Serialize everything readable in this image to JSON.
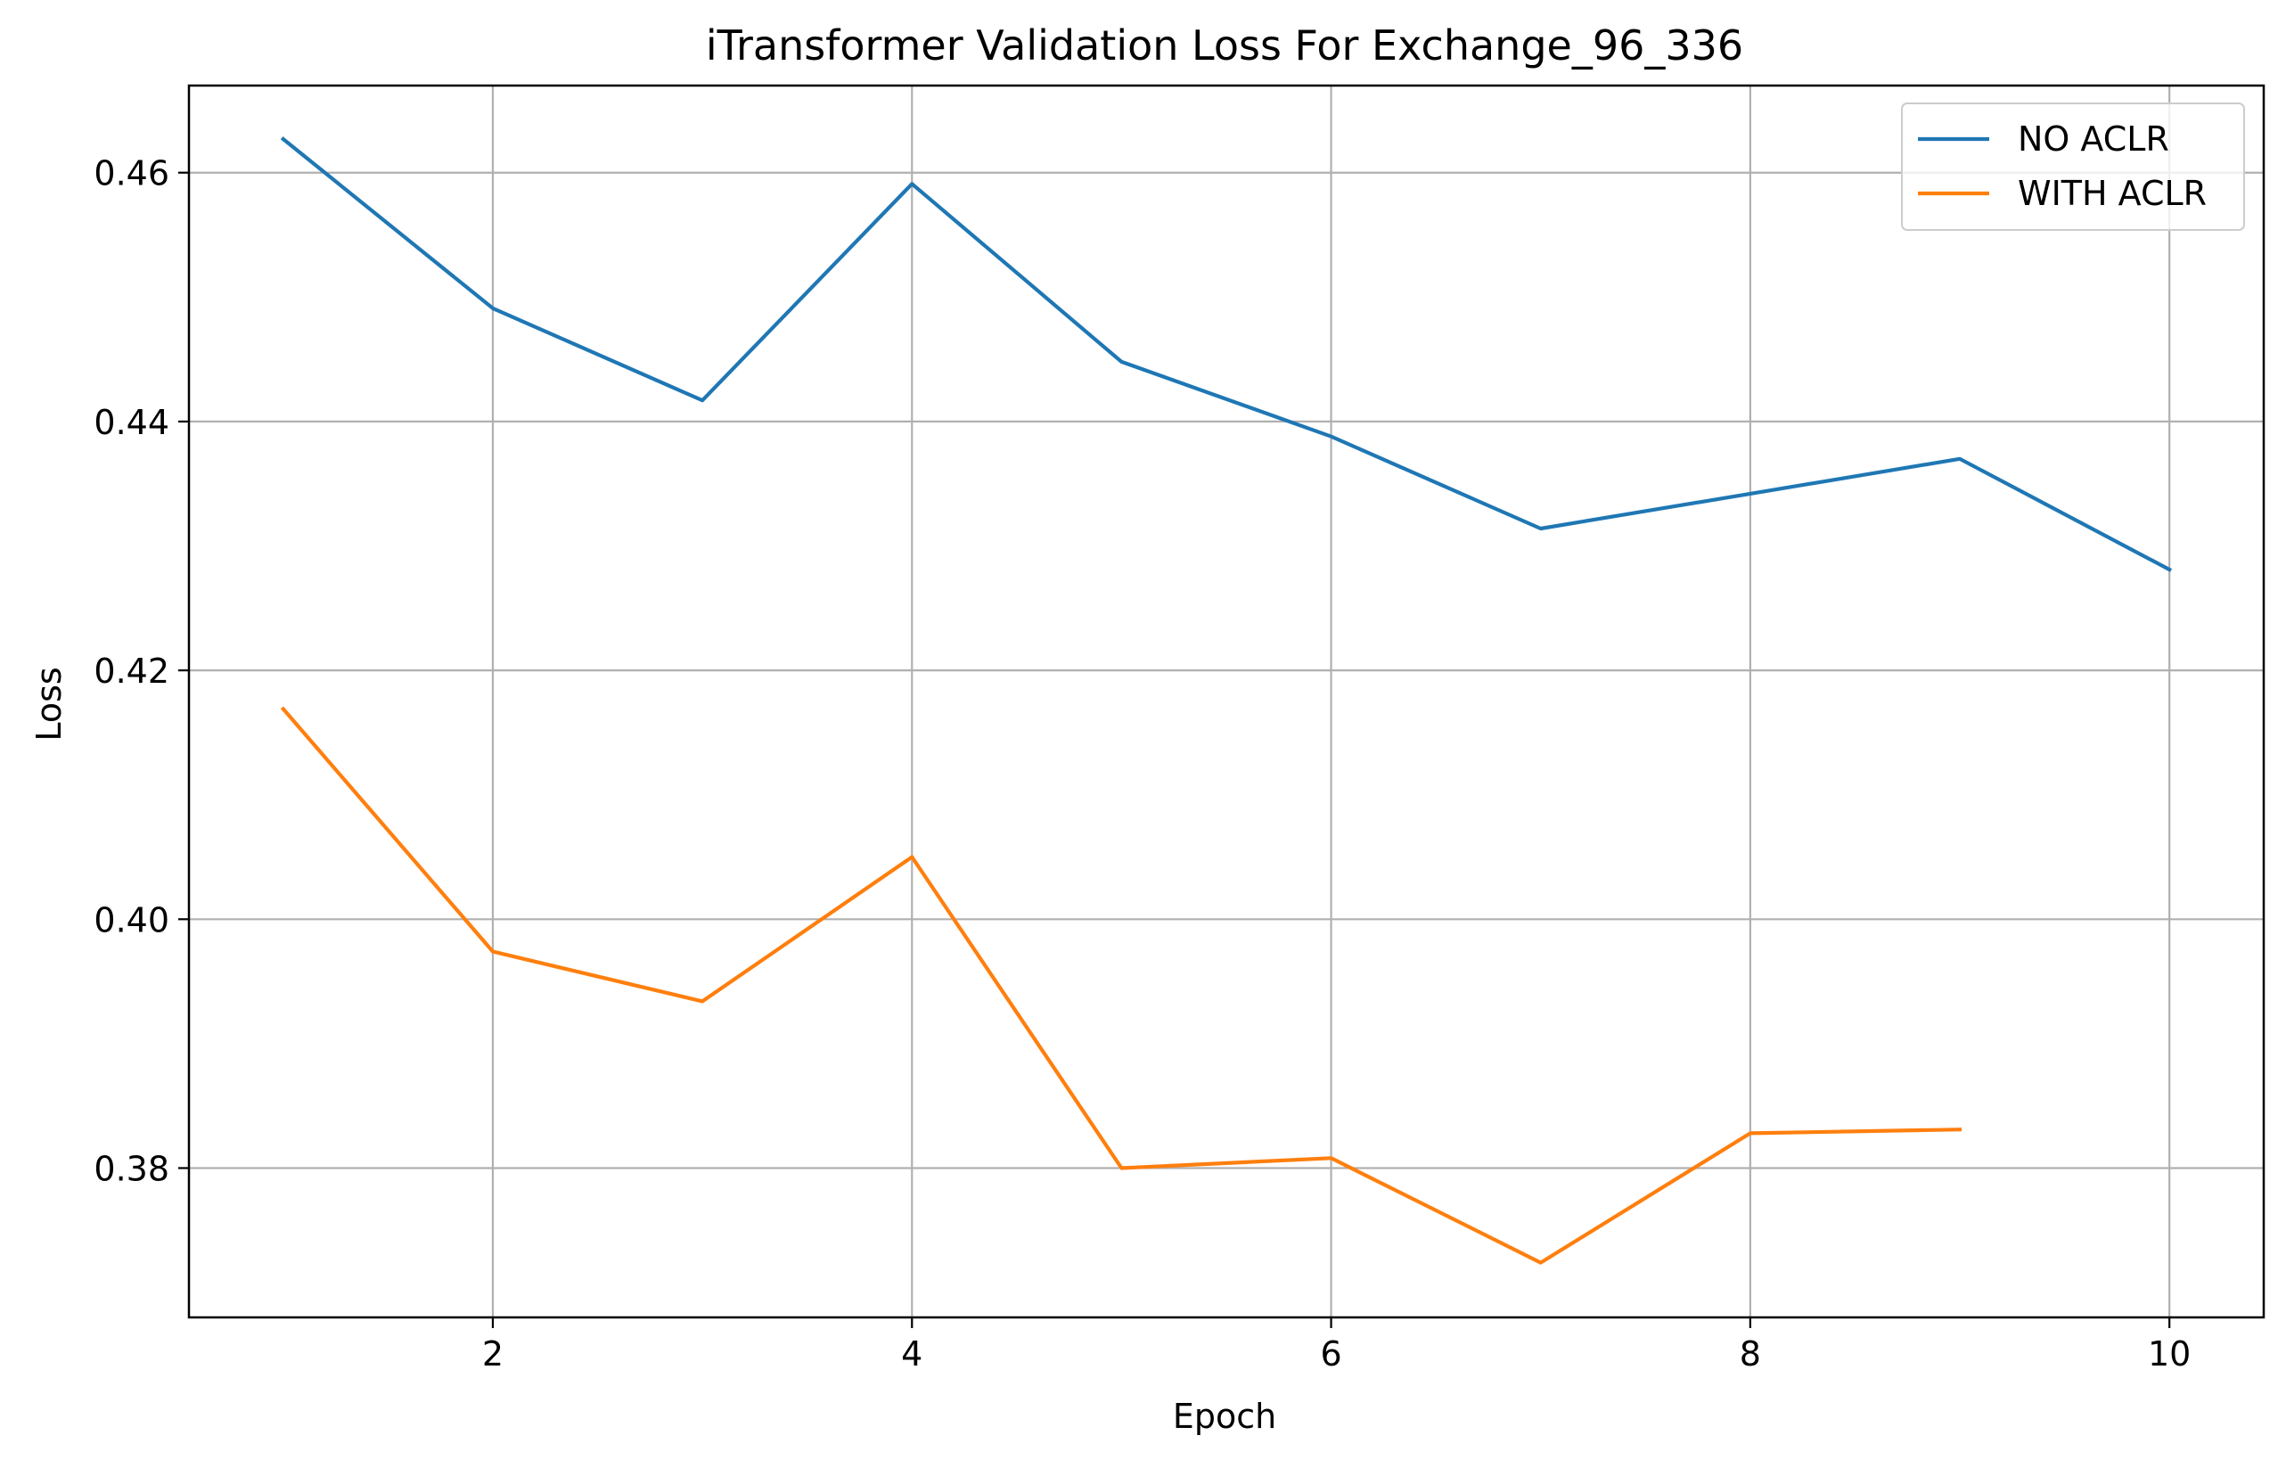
{
  "chart_data": {
    "type": "line",
    "title": "iTransformer Validation Loss For Exchange_96_336",
    "xlabel": "Epoch",
    "ylabel": "Loss",
    "xlim": [
      0.55,
      10.45
    ],
    "ylim": [
      0.368,
      0.467
    ],
    "xticks": [
      2,
      4,
      6,
      8,
      10
    ],
    "xtick_labels": [
      "2",
      "4",
      "6",
      "8",
      "10"
    ],
    "yticks": [
      0.38,
      0.4,
      0.42,
      0.44,
      0.46
    ],
    "ytick_labels": [
      "0.38",
      "0.40",
      "0.42",
      "0.44",
      "0.46"
    ],
    "grid": true,
    "legend_position": "top-right",
    "series": [
      {
        "name": "NO ACLR",
        "color": "#1f77b4",
        "x": [
          1,
          2,
          3,
          4,
          5,
          6,
          7,
          8,
          9,
          10
        ],
        "values": [
          0.4627,
          0.4491,
          0.4417,
          0.4591,
          0.4448,
          0.4388,
          0.4314,
          0.4342,
          0.437,
          0.4281
        ]
      },
      {
        "name": "WITH ACLR",
        "color": "#ff7f0e",
        "x": [
          1,
          2,
          3,
          4,
          5,
          6,
          7,
          8,
          9
        ],
        "values": [
          0.4169,
          0.3974,
          0.3934,
          0.405,
          0.38,
          0.3808,
          0.3724,
          0.3828,
          0.3831
        ]
      }
    ]
  }
}
